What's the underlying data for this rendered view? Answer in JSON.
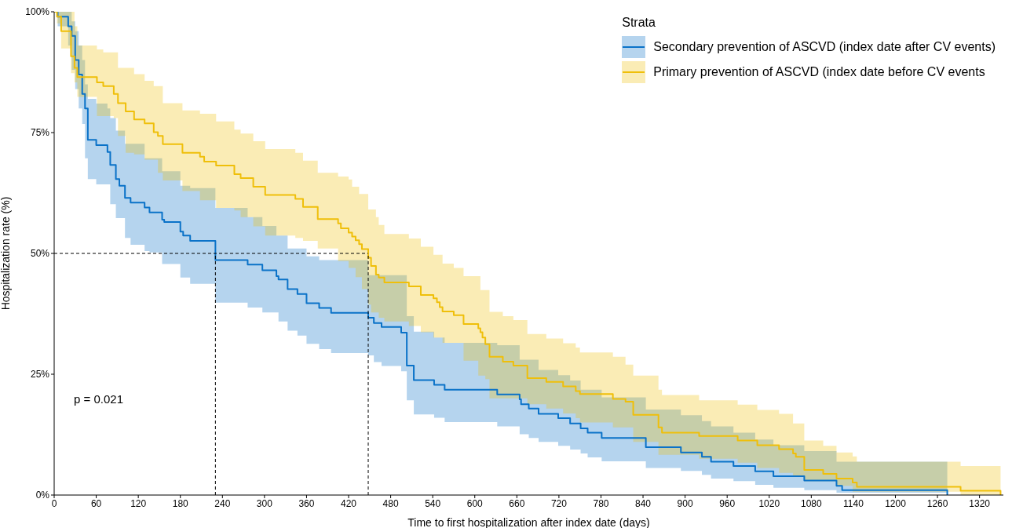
{
  "chart_data": {
    "type": "step",
    "xlabel": "Time to first hospitalization after index date (days)",
    "ylabel": "Hospitalization rate (%)",
    "legend_title": "Strata",
    "legend": "top right",
    "grid": false,
    "marker": "none",
    "xlim": [
      0,
      1354
    ],
    "xticks": [
      0,
      60,
      120,
      180,
      240,
      300,
      360,
      420,
      480,
      540,
      600,
      660,
      720,
      780,
      840,
      900,
      960,
      1020,
      1080,
      1140,
      1200,
      1260,
      1320
    ],
    "ylim": [
      0,
      100
    ],
    "yticks": [
      {
        "value": 0,
        "label": "0%"
      },
      {
        "value": 25,
        "label": "25%"
      },
      {
        "value": 50,
        "label": "50%"
      },
      {
        "value": 75,
        "label": "75%"
      },
      {
        "value": 100,
        "label": "100%"
      }
    ],
    "annotations": [
      "p = 0.021"
    ],
    "ref_lines": [
      {
        "axis": "y",
        "value": 50,
        "line_style": "dashed"
      },
      {
        "axis": "x",
        "value": 230,
        "line_style": "dashed"
      },
      {
        "axis": "x",
        "value": 448,
        "line_style": "dashed"
      }
    ],
    "series": [
      {
        "name": "Secondary prevention of ASCVD (index date after CV events)",
        "color": "#0a72c8",
        "x": [
          0,
          5,
          20,
          25,
          30,
          35,
          40,
          44,
          48,
          60,
          76,
          80,
          88,
          93,
          101,
          109,
          129,
          136,
          154,
          157,
          180,
          184,
          194,
          230,
          276,
          297,
          317,
          320,
          333,
          347,
          360,
          378,
          395,
          448,
          456,
          467,
          495,
          503,
          513,
          542,
          557,
          632,
          664,
          666,
          677,
          691,
          719,
          736,
          751,
          761,
          781,
          844,
          894,
          924,
          937,
          969,
          1000,
          1026,
          1070,
          1116,
          1124,
          1274
        ],
        "values": [
          100,
          99,
          97,
          95,
          90,
          87,
          83,
          80,
          73.5,
          72.4,
          71,
          68.3,
          65.4,
          64,
          61.5,
          60.5,
          59.5,
          58.5,
          57,
          56.5,
          54.5,
          53.7,
          52.6,
          48.6,
          47.7,
          46.5,
          45.3,
          44.6,
          42.6,
          41.6,
          39.7,
          38.7,
          37.7,
          36.7,
          35.6,
          34.8,
          33.6,
          26.8,
          23.8,
          22.8,
          21.8,
          20.8,
          19.8,
          18.8,
          17.9,
          16.8,
          15.9,
          14.8,
          13.8,
          12.9,
          11.8,
          9.9,
          8.8,
          7.9,
          6.9,
          6.0,
          4.9,
          3.9,
          3.0,
          1.9,
          1.0,
          0
        ],
        "upper": [
          100,
          100,
          100,
          98,
          96,
          93,
          90,
          85,
          82,
          81,
          80,
          78,
          75.4,
          75.4,
          72.7,
          72.7,
          69.7,
          69.7,
          67,
          67,
          64,
          64,
          63.5,
          59.4,
          57.5,
          55.7,
          53.7,
          53.7,
          51,
          51,
          49.4,
          48.6,
          48.6,
          45.5,
          45.5,
          45.5,
          45.5,
          37,
          33.8,
          32.6,
          31.5,
          31,
          28,
          28,
          28,
          25.9,
          24.8,
          23.7,
          21.8,
          21.8,
          20.2,
          17.7,
          16.5,
          15.3,
          14.2,
          12.9,
          11.5,
          10.3,
          9.1,
          6.9,
          6.9,
          6.9
        ],
        "lower": [
          100,
          97,
          93,
          88,
          84,
          80,
          76.8,
          69.7,
          65.4,
          64.3,
          64.3,
          60.2,
          57.3,
          57.3,
          53.2,
          51.8,
          50.5,
          50.2,
          47.8,
          47.8,
          45,
          45,
          43.7,
          39.8,
          38.8,
          37.8,
          37.8,
          35.9,
          34,
          33,
          31.3,
          30.2,
          29.4,
          28.9,
          27.5,
          26.7,
          25.6,
          19.6,
          16.7,
          16,
          15.1,
          14.2,
          12.6,
          12.6,
          11.8,
          11,
          10.2,
          9.4,
          8.6,
          7.8,
          7,
          5.6,
          5,
          4.2,
          3.4,
          2.9,
          2.1,
          1.5,
          1.0,
          0.5,
          0.5,
          0
        ]
      },
      {
        "name": "Primary prevention of ASCVD (index date before CV events",
        "color": "#efbf0a",
        "x": [
          0,
          4,
          10,
          24,
          29,
          33,
          61,
          70,
          85,
          91,
          102,
          114,
          129,
          142,
          148,
          155,
          183,
          208,
          214,
          231,
          257,
          266,
          284,
          301,
          344,
          355,
          376,
          405,
          409,
          420,
          425,
          430,
          435,
          439,
          448,
          452,
          459,
          463,
          471,
          506,
          523,
          541,
          546,
          550,
          554,
          570,
          584,
          605,
          608,
          611,
          615,
          621,
          640,
          655,
          675,
          702,
          726,
          744,
          750,
          797,
          815,
          826,
          862,
          867,
          920,
          975,
          1003,
          1034,
          1054,
          1058,
          1070,
          1097,
          1116,
          1139,
          1145,
          1293,
          1350
        ],
        "values": [
          100,
          99,
          96,
          90.8,
          88.4,
          86.5,
          85.4,
          84.6,
          83,
          81.1,
          79.4,
          77.7,
          76.9,
          75.1,
          74.3,
          72.6,
          70.8,
          70,
          69,
          68.2,
          66.4,
          65.6,
          63.8,
          62.1,
          61.3,
          59.6,
          57.1,
          56.2,
          55.2,
          54.3,
          53.5,
          52.7,
          51.9,
          50.9,
          49.1,
          47.4,
          45.6,
          45,
          44,
          43.2,
          41.4,
          40.7,
          39.9,
          38.9,
          38,
          37.2,
          35.4,
          34.5,
          33.7,
          32.6,
          31.2,
          28.6,
          27.6,
          26.8,
          24.2,
          23.4,
          22.5,
          21.5,
          20.9,
          19.9,
          19.3,
          16.6,
          14,
          12.9,
          12.2,
          11.3,
          10.3,
          9.5,
          8.6,
          7.9,
          5.2,
          4.4,
          3.4,
          2.6,
          1.7,
          0.9,
          0
        ],
        "upper": [
          100,
          100,
          100,
          100,
          97,
          93,
          92.2,
          91.6,
          91.6,
          88.4,
          88.4,
          87.1,
          85.7,
          84.6,
          84.6,
          81.1,
          79.6,
          78.9,
          78.9,
          77.3,
          75.6,
          74.8,
          73.2,
          71.6,
          70.8,
          69.2,
          66.7,
          65.9,
          65.9,
          65.3,
          63.8,
          63.8,
          62.3,
          62.3,
          59.1,
          59.1,
          57.5,
          55.9,
          54,
          53.1,
          51.4,
          49.7,
          49.7,
          49.7,
          47.9,
          47,
          45.3,
          45.3,
          42.4,
          42.4,
          42.4,
          37.9,
          37,
          36.2,
          33.3,
          32.4,
          31.4,
          30.5,
          29.5,
          28.6,
          27,
          24.7,
          21.8,
          20.7,
          19.6,
          18.7,
          17.6,
          16.8,
          14.8,
          14.8,
          11.3,
          10.2,
          8.8,
          8,
          6.9,
          6,
          6
        ],
        "lower": [
          100,
          97.6,
          92.4,
          87.3,
          85.4,
          82.4,
          78.4,
          78.4,
          78,
          74.3,
          70.8,
          70.5,
          69.4,
          69.4,
          66.7,
          65.1,
          62.9,
          61,
          61,
          59.4,
          58.9,
          57.5,
          55.6,
          53.7,
          53.2,
          52.6,
          51,
          48.4,
          48.4,
          47,
          47,
          45.1,
          45.1,
          42.6,
          39.4,
          37.8,
          37.8,
          36.7,
          35.9,
          35,
          33.7,
          32.6,
          32.6,
          32.6,
          31.5,
          31.5,
          27.8,
          24.7,
          24.7,
          24.7,
          24,
          20,
          20,
          20,
          18.8,
          17.9,
          16.9,
          15.9,
          15,
          14,
          14,
          11,
          8.3,
          8.3,
          7.5,
          6.7,
          5.6,
          4.6,
          3.9,
          3.9,
          2.9,
          2.9,
          1.9,
          0.7,
          0.7,
          0,
          0
        ]
      }
    ]
  }
}
